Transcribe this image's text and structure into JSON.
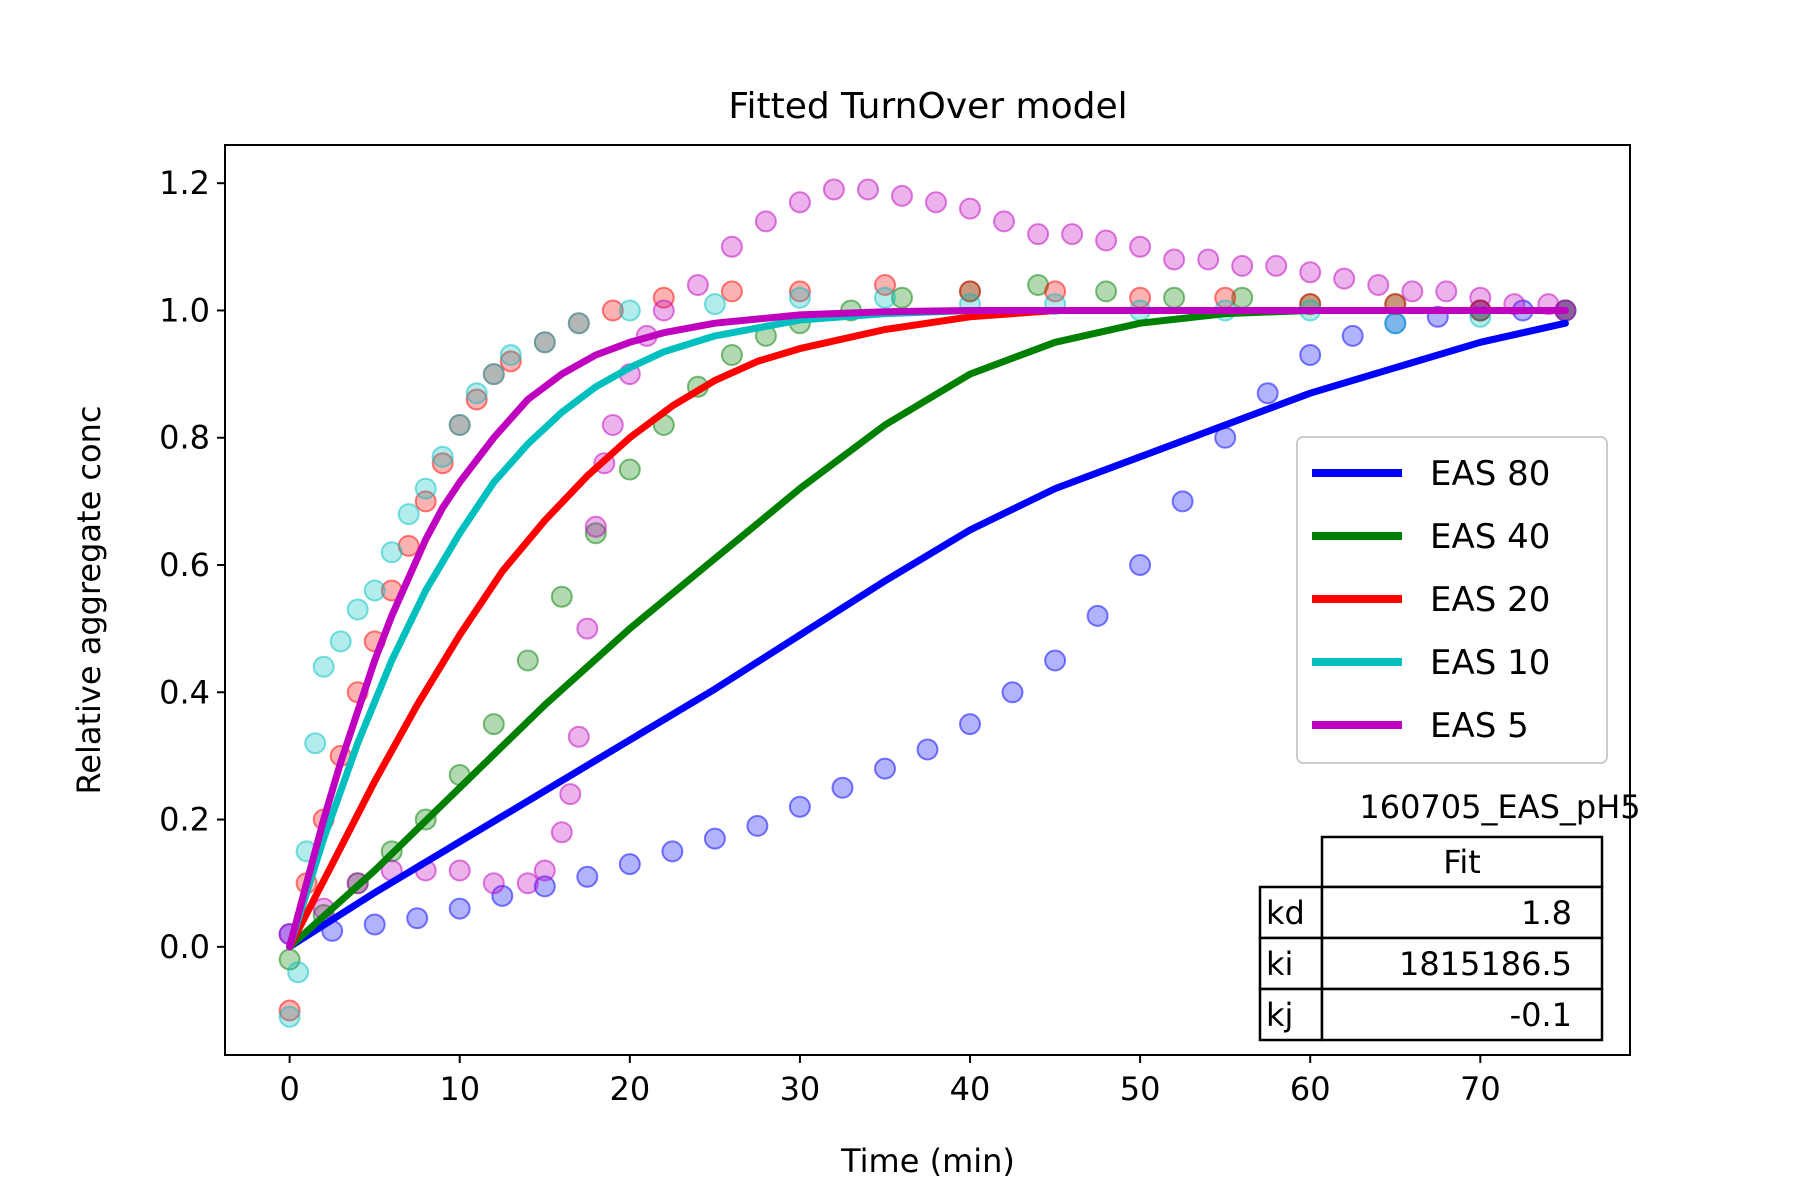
{
  "chart_data": {
    "type": "line",
    "title": "Fitted TurnOver model",
    "xlabel": "Time (min)",
    "ylabel": "Relative aggregate conc",
    "xlim": [
      -3.8,
      78.8
    ],
    "ylim": [
      -0.17,
      1.26
    ],
    "xticks": [
      0,
      10,
      20,
      30,
      40,
      50,
      60,
      70
    ],
    "yticks": [
      0.0,
      0.2,
      0.4,
      0.6,
      0.8,
      1.0,
      1.2
    ],
    "grid": false,
    "legend_position": "center-right",
    "series": [
      {
        "name": "EAS 80",
        "color": "#0000ff",
        "fit": [
          [
            0,
            0
          ],
          [
            5,
            0.085
          ],
          [
            10,
            0.165
          ],
          [
            15,
            0.245
          ],
          [
            20,
            0.325
          ],
          [
            25,
            0.405
          ],
          [
            30,
            0.49
          ],
          [
            35,
            0.575
          ],
          [
            40,
            0.655
          ],
          [
            45,
            0.72
          ],
          [
            50,
            0.77
          ],
          [
            55,
            0.82
          ],
          [
            60,
            0.87
          ],
          [
            65,
            0.91
          ],
          [
            70,
            0.95
          ],
          [
            75,
            0.98
          ]
        ],
        "data": [
          [
            0,
            0.02
          ],
          [
            2.5,
            0.025
          ],
          [
            5,
            0.035
          ],
          [
            7.5,
            0.045
          ],
          [
            10,
            0.06
          ],
          [
            12.5,
            0.08
          ],
          [
            15,
            0.095
          ],
          [
            17.5,
            0.11
          ],
          [
            20,
            0.13
          ],
          [
            22.5,
            0.15
          ],
          [
            25,
            0.17
          ],
          [
            27.5,
            0.19
          ],
          [
            30,
            0.22
          ],
          [
            32.5,
            0.25
          ],
          [
            35,
            0.28
          ],
          [
            37.5,
            0.31
          ],
          [
            40,
            0.35
          ],
          [
            42.5,
            0.4
          ],
          [
            45,
            0.45
          ],
          [
            47.5,
            0.52
          ],
          [
            50,
            0.6
          ],
          [
            52.5,
            0.7
          ],
          [
            55,
            0.8
          ],
          [
            57.5,
            0.87
          ],
          [
            60,
            0.93
          ],
          [
            62.5,
            0.96
          ],
          [
            65,
            0.98
          ],
          [
            67.5,
            0.99
          ],
          [
            70,
            1.0
          ],
          [
            72.5,
            1.0
          ],
          [
            75,
            1.0
          ]
        ]
      },
      {
        "name": "EAS 40",
        "color": "#008000",
        "fit": [
          [
            0,
            0
          ],
          [
            5,
            0.12
          ],
          [
            10,
            0.25
          ],
          [
            15,
            0.38
          ],
          [
            20,
            0.5
          ],
          [
            25,
            0.61
          ],
          [
            30,
            0.72
          ],
          [
            35,
            0.82
          ],
          [
            40,
            0.9
          ],
          [
            45,
            0.95
          ],
          [
            50,
            0.98
          ],
          [
            55,
            0.995
          ],
          [
            60,
            1.0
          ],
          [
            65,
            1.0
          ],
          [
            70,
            1.0
          ],
          [
            75,
            1.0
          ]
        ],
        "data": [
          [
            0,
            -0.02
          ],
          [
            2,
            0.05
          ],
          [
            4,
            0.1
          ],
          [
            6,
            0.15
          ],
          [
            8,
            0.2
          ],
          [
            10,
            0.27
          ],
          [
            12,
            0.35
          ],
          [
            14,
            0.45
          ],
          [
            16,
            0.55
          ],
          [
            18,
            0.65
          ],
          [
            20,
            0.75
          ],
          [
            22,
            0.82
          ],
          [
            24,
            0.88
          ],
          [
            26,
            0.93
          ],
          [
            28,
            0.96
          ],
          [
            30,
            0.98
          ],
          [
            33,
            1.0
          ],
          [
            36,
            1.02
          ],
          [
            40,
            1.03
          ],
          [
            44,
            1.04
          ],
          [
            48,
            1.03
          ],
          [
            52,
            1.02
          ],
          [
            56,
            1.02
          ],
          [
            60,
            1.01
          ],
          [
            65,
            1.01
          ],
          [
            70,
            1.0
          ],
          [
            75,
            1.0
          ]
        ]
      },
      {
        "name": "EAS 20",
        "color": "#ff0000",
        "fit": [
          [
            0,
            0
          ],
          [
            2.5,
            0.13
          ],
          [
            5,
            0.26
          ],
          [
            7.5,
            0.38
          ],
          [
            10,
            0.49
          ],
          [
            12.5,
            0.59
          ],
          [
            15,
            0.67
          ],
          [
            17.5,
            0.74
          ],
          [
            20,
            0.8
          ],
          [
            22.5,
            0.85
          ],
          [
            25,
            0.89
          ],
          [
            27.5,
            0.92
          ],
          [
            30,
            0.94
          ],
          [
            35,
            0.97
          ],
          [
            40,
            0.99
          ],
          [
            45,
            1.0
          ],
          [
            50,
            1.0
          ],
          [
            60,
            1.0
          ],
          [
            70,
            1.0
          ],
          [
            75,
            1.0
          ]
        ],
        "data": [
          [
            0,
            -0.1
          ],
          [
            1,
            0.1
          ],
          [
            2,
            0.2
          ],
          [
            3,
            0.3
          ],
          [
            4,
            0.4
          ],
          [
            5,
            0.48
          ],
          [
            6,
            0.56
          ],
          [
            7,
            0.63
          ],
          [
            8,
            0.7
          ],
          [
            9,
            0.76
          ],
          [
            10,
            0.82
          ],
          [
            11,
            0.86
          ],
          [
            12,
            0.9
          ],
          [
            13,
            0.92
          ],
          [
            15,
            0.95
          ],
          [
            17,
            0.98
          ],
          [
            19,
            1.0
          ],
          [
            22,
            1.02
          ],
          [
            26,
            1.03
          ],
          [
            30,
            1.03
          ],
          [
            35,
            1.04
          ],
          [
            40,
            1.03
          ],
          [
            45,
            1.03
          ],
          [
            50,
            1.02
          ],
          [
            55,
            1.02
          ],
          [
            60,
            1.01
          ],
          [
            65,
            1.01
          ],
          [
            70,
            1.0
          ],
          [
            75,
            1.0
          ]
        ]
      },
      {
        "name": "EAS 10",
        "color": "#00bfbf",
        "fit": [
          [
            0,
            0
          ],
          [
            2,
            0.17
          ],
          [
            4,
            0.32
          ],
          [
            6,
            0.45
          ],
          [
            8,
            0.56
          ],
          [
            10,
            0.65
          ],
          [
            12,
            0.73
          ],
          [
            14,
            0.79
          ],
          [
            16,
            0.84
          ],
          [
            18,
            0.88
          ],
          [
            20,
            0.91
          ],
          [
            22,
            0.935
          ],
          [
            25,
            0.96
          ],
          [
            30,
            0.985
          ],
          [
            35,
            0.995
          ],
          [
            40,
            1.0
          ],
          [
            50,
            1.0
          ],
          [
            60,
            1.0
          ],
          [
            70,
            1.0
          ],
          [
            75,
            1.0
          ]
        ],
        "data": [
          [
            0,
            -0.11
          ],
          [
            0.5,
            -0.04
          ],
          [
            1,
            0.15
          ],
          [
            1.5,
            0.32
          ],
          [
            2,
            0.44
          ],
          [
            3,
            0.48
          ],
          [
            4,
            0.53
          ],
          [
            5,
            0.56
          ],
          [
            6,
            0.62
          ],
          [
            7,
            0.68
          ],
          [
            8,
            0.72
          ],
          [
            9,
            0.77
          ],
          [
            10,
            0.82
          ],
          [
            11,
            0.87
          ],
          [
            12,
            0.9
          ],
          [
            13,
            0.93
          ],
          [
            15,
            0.95
          ],
          [
            17,
            0.98
          ],
          [
            20,
            1.0
          ],
          [
            25,
            1.01
          ],
          [
            30,
            1.02
          ],
          [
            35,
            1.02
          ],
          [
            40,
            1.01
          ],
          [
            45,
            1.01
          ],
          [
            50,
            1.0
          ],
          [
            55,
            1.0
          ],
          [
            60,
            1.0
          ],
          [
            65,
            0.98
          ],
          [
            70,
            0.99
          ],
          [
            75,
            1.0
          ]
        ]
      },
      {
        "name": "EAS 5",
        "color": "#bf00bf",
        "fit": [
          [
            0,
            0
          ],
          [
            1,
            0.1
          ],
          [
            2,
            0.2
          ],
          [
            3,
            0.29
          ],
          [
            4,
            0.37
          ],
          [
            5,
            0.45
          ],
          [
            6,
            0.52
          ],
          [
            7,
            0.58
          ],
          [
            8,
            0.64
          ],
          [
            9,
            0.69
          ],
          [
            10,
            0.73
          ],
          [
            12,
            0.8
          ],
          [
            14,
            0.86
          ],
          [
            16,
            0.9
          ],
          [
            18,
            0.93
          ],
          [
            20,
            0.95
          ],
          [
            22,
            0.965
          ],
          [
            25,
            0.98
          ],
          [
            30,
            0.993
          ],
          [
            35,
            0.998
          ],
          [
            40,
            1.0
          ],
          [
            50,
            1.0
          ],
          [
            60,
            1.0
          ],
          [
            70,
            1.0
          ],
          [
            75,
            1.0
          ]
        ],
        "data": [
          [
            0,
            0.02
          ],
          [
            2,
            0.06
          ],
          [
            4,
            0.1
          ],
          [
            6,
            0.12
          ],
          [
            8,
            0.12
          ],
          [
            10,
            0.12
          ],
          [
            12,
            0.1
          ],
          [
            14,
            0.1
          ],
          [
            15,
            0.12
          ],
          [
            16,
            0.18
          ],
          [
            16.5,
            0.24
          ],
          [
            17,
            0.33
          ],
          [
            17.5,
            0.5
          ],
          [
            18,
            0.66
          ],
          [
            18.5,
            0.76
          ],
          [
            19,
            0.82
          ],
          [
            20,
            0.9
          ],
          [
            21,
            0.96
          ],
          [
            22,
            1.0
          ],
          [
            24,
            1.04
          ],
          [
            26,
            1.1
          ],
          [
            28,
            1.14
          ],
          [
            30,
            1.17
          ],
          [
            32,
            1.19
          ],
          [
            34,
            1.19
          ],
          [
            36,
            1.18
          ],
          [
            38,
            1.17
          ],
          [
            40,
            1.16
          ],
          [
            42,
            1.14
          ],
          [
            44,
            1.12
          ],
          [
            46,
            1.12
          ],
          [
            48,
            1.11
          ],
          [
            50,
            1.1
          ],
          [
            52,
            1.08
          ],
          [
            54,
            1.08
          ],
          [
            56,
            1.07
          ],
          [
            58,
            1.07
          ],
          [
            60,
            1.06
          ],
          [
            62,
            1.05
          ],
          [
            64,
            1.04
          ],
          [
            66,
            1.03
          ],
          [
            68,
            1.03
          ],
          [
            70,
            1.02
          ],
          [
            72,
            1.01
          ],
          [
            74,
            1.01
          ],
          [
            75,
            1.0
          ]
        ]
      }
    ],
    "table": {
      "title": "160705_EAS_pH5",
      "column_header": "Fit",
      "rows": [
        {
          "label": "kd",
          "value": "1.8"
        },
        {
          "label": "ki",
          "value": "1815186.5"
        },
        {
          "label": "kj",
          "value": "-0.1"
        }
      ]
    }
  }
}
